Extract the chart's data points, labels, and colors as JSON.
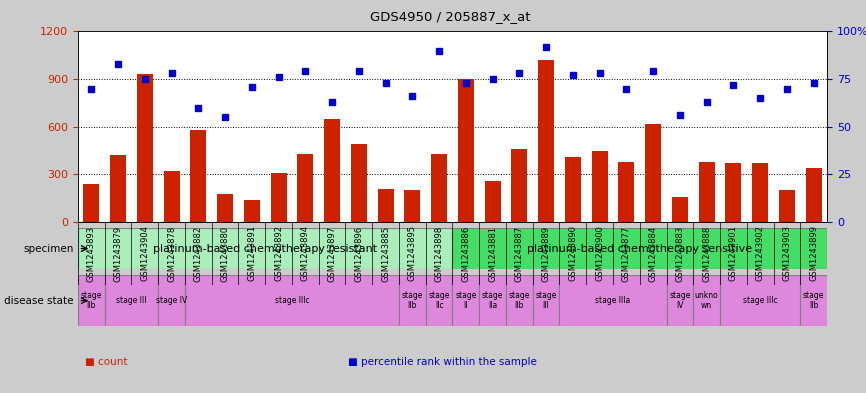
{
  "title": "GDS4950 / 205887_x_at",
  "samples": [
    "GSM1243893",
    "GSM1243879",
    "GSM1243904",
    "GSM1243878",
    "GSM1243882",
    "GSM1243880",
    "GSM1243891",
    "GSM1243892",
    "GSM1243894",
    "GSM1243897",
    "GSM1243896",
    "GSM1243885",
    "GSM1243895",
    "GSM1243898",
    "GSM1243886",
    "GSM1243881",
    "GSM1243887",
    "GSM1243889",
    "GSM1243890",
    "GSM1243900",
    "GSM1243877",
    "GSM1243884",
    "GSM1243883",
    "GSM1243888",
    "GSM1243901",
    "GSM1243902",
    "GSM1243903",
    "GSM1243899"
  ],
  "counts": [
    240,
    420,
    930,
    320,
    580,
    175,
    140,
    310,
    430,
    650,
    490,
    210,
    200,
    430,
    900,
    260,
    460,
    1020,
    410,
    450,
    380,
    620,
    160,
    380,
    370,
    370,
    200,
    340
  ],
  "percentiles": [
    70,
    83,
    75,
    78,
    60,
    55,
    71,
    76,
    79,
    63,
    79,
    73,
    66,
    90,
    73,
    75,
    78,
    92,
    77,
    78,
    70,
    79,
    56,
    63,
    72,
    65,
    70,
    73
  ],
  "bar_color": "#cc2200",
  "dot_color": "#0000cc",
  "ylim_left": [
    0,
    1200
  ],
  "ylim_right": [
    0,
    100
  ],
  "yticks_left": [
    0,
    300,
    600,
    900,
    1200
  ],
  "yticks_right": [
    0,
    25,
    50,
    75,
    100
  ],
  "ytick_labels_left": [
    "0",
    "300",
    "600",
    "900",
    "1200"
  ],
  "ytick_labels_right": [
    "0",
    "25",
    "50",
    "75",
    "100%"
  ],
  "grid_lines": [
    300,
    600,
    900
  ],
  "specimen_groups": [
    {
      "label": "platinum-based chemotherapy resistant",
      "start": 0,
      "end": 14,
      "color": "#aaeebb"
    },
    {
      "label": "platinum-based chemotherapy sensitive",
      "start": 14,
      "end": 28,
      "color": "#44dd66"
    }
  ],
  "disease_states": [
    {
      "label": "stage\nIIb",
      "start": 0,
      "end": 1,
      "color": "#dd88dd"
    },
    {
      "label": "stage III",
      "start": 1,
      "end": 3,
      "color": "#dd88dd"
    },
    {
      "label": "stage IV",
      "start": 3,
      "end": 4,
      "color": "#dd88dd"
    },
    {
      "label": "stage IIIc",
      "start": 4,
      "end": 12,
      "color": "#dd88dd"
    },
    {
      "label": "stage\nIIb",
      "start": 12,
      "end": 13,
      "color": "#dd88dd"
    },
    {
      "label": "stage\nIIc",
      "start": 13,
      "end": 14,
      "color": "#dd88dd"
    },
    {
      "label": "stage\nII",
      "start": 14,
      "end": 15,
      "color": "#dd88dd"
    },
    {
      "label": "stage\nIIa",
      "start": 15,
      "end": 16,
      "color": "#dd88dd"
    },
    {
      "label": "stage\nIIb",
      "start": 16,
      "end": 17,
      "color": "#dd88dd"
    },
    {
      "label": "stage\nIII",
      "start": 17,
      "end": 18,
      "color": "#dd88dd"
    },
    {
      "label": "stage IIIa",
      "start": 18,
      "end": 22,
      "color": "#dd88dd"
    },
    {
      "label": "stage\nIV",
      "start": 22,
      "end": 23,
      "color": "#dd88dd"
    },
    {
      "label": "unkno\nwn",
      "start": 23,
      "end": 24,
      "color": "#dd88dd"
    },
    {
      "label": "stage IIIc",
      "start": 24,
      "end": 27,
      "color": "#dd88dd"
    },
    {
      "label": "stage\nIIb",
      "start": 27,
      "end": 28,
      "color": "#dd88dd"
    }
  ],
  "legend_items": [
    {
      "label": "count",
      "color": "#cc2200"
    },
    {
      "label": "percentile rank within the sample",
      "color": "#0000cc"
    }
  ],
  "bg_color": "#cccccc",
  "plot_bg_color": "#ffffff",
  "xtick_bg_color": "#c0c0c0"
}
